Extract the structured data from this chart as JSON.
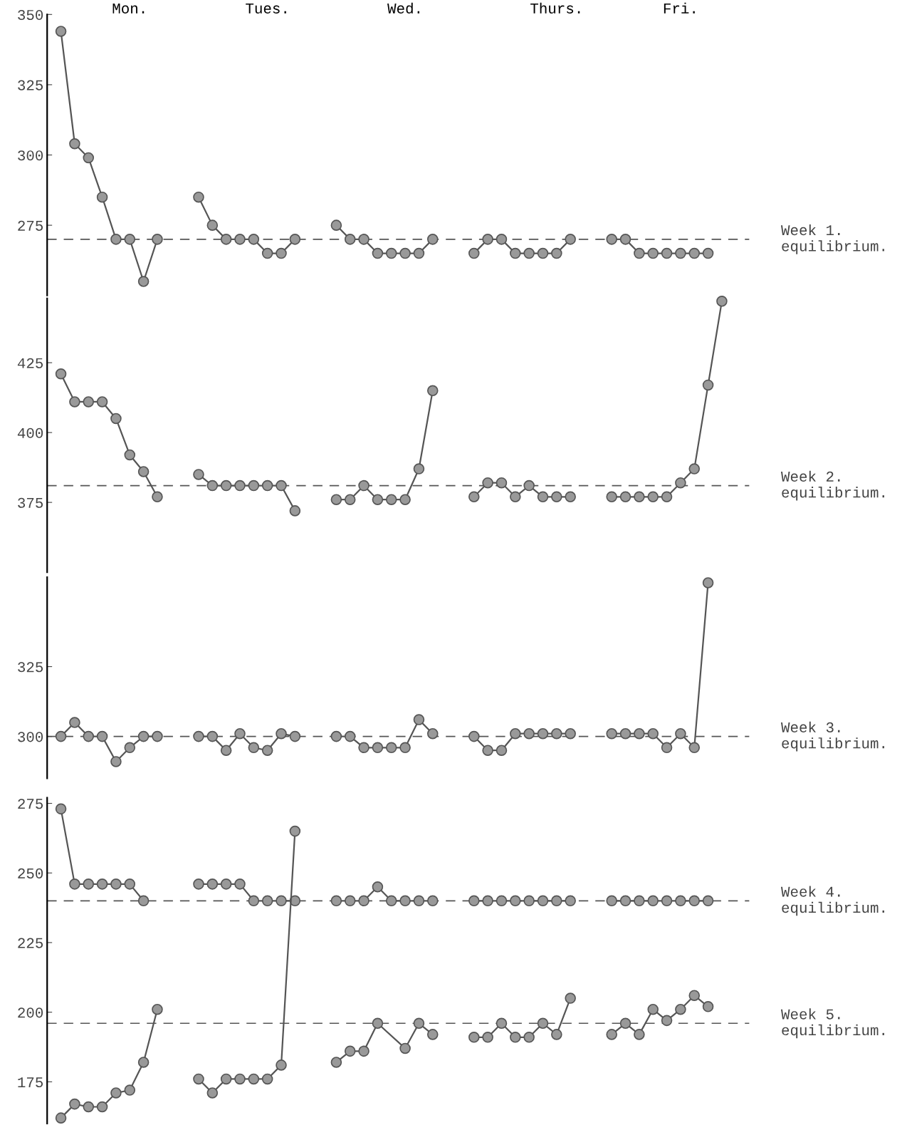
{
  "chart_data": [
    {
      "type": "line",
      "categories": [
        null,
        null,
        null,
        null,
        null,
        "Mon.",
        null,
        null,
        null,
        null,
        null,
        null,
        null,
        null,
        null,
        "Tues.",
        null,
        null,
        null,
        null,
        null,
        null,
        null,
        null,
        null,
        "Wed.",
        null,
        null,
        null,
        null,
        null,
        null,
        null,
        null,
        null,
        null,
        "Thurs.",
        null,
        null,
        null,
        null,
        null,
        null,
        null,
        null,
        "Fri.",
        null,
        null,
        null
      ],
      "ylim": [
        250,
        350
      ],
      "yticks": [
        275,
        300,
        325,
        350
      ],
      "marker": "circle",
      "line_style": "solid",
      "grid": false,
      "ref_lines": [
        {
          "axis": "y",
          "value": 270,
          "label": "Week 1.\nequilibrium.",
          "color": "#555555",
          "line_style": "dashed"
        }
      ],
      "series": [
        {
          "color": "#555555",
          "values": [
            344,
            304,
            299,
            285,
            270,
            270,
            255,
            270,
            null,
            null,
            285,
            275,
            270,
            270,
            270,
            265,
            265,
            270,
            null,
            null,
            275,
            270,
            270,
            265,
            265,
            265,
            265,
            270,
            null,
            null,
            265,
            270,
            270,
            265,
            265,
            265,
            265,
            270,
            null,
            null,
            270,
            270,
            265,
            265,
            265,
            265,
            265,
            265,
            null
          ]
        }
      ]
    },
    {
      "type": "line",
      "categories": [
        null,
        null,
        null,
        null,
        null,
        null,
        null,
        null,
        null,
        null,
        null,
        null,
        null,
        null,
        null,
        null,
        null,
        null,
        null,
        null,
        null,
        null,
        null,
        null,
        null,
        null,
        null,
        null,
        null,
        null,
        null,
        null,
        null,
        null,
        null,
        null,
        null,
        null,
        null,
        null,
        null,
        null,
        null,
        null,
        null,
        null,
        null,
        null,
        null
      ],
      "tick_labels": "y",
      "ylim": [
        350,
        448
      ],
      "yticks": [
        375,
        400,
        425
      ],
      "marker": "circle",
      "line_style": "solid",
      "grid": false,
      "ref_lines": [
        {
          "axis": "y",
          "value": 381,
          "label": "Week 2.\nequilibrium.",
          "color": "#555555",
          "line_style": "dashed"
        }
      ],
      "series": [
        {
          "color": "#555555",
          "values": [
            421,
            411,
            411,
            411,
            405,
            392,
            386,
            377,
            null,
            null,
            385,
            381,
            381,
            381,
            381,
            381,
            381,
            372,
            null,
            null,
            376,
            376,
            381,
            376,
            376,
            376,
            387,
            415,
            null,
            null,
            377,
            382,
            382,
            377,
            381,
            377,
            377,
            377,
            null,
            null,
            377,
            377,
            377,
            377,
            377,
            382,
            387,
            417,
            447
          ]
        }
      ]
    },
    {
      "type": "line",
      "categories": [
        null,
        null,
        null,
        null,
        null,
        null,
        null,
        null,
        null,
        null,
        null,
        null,
        null,
        null,
        null,
        null,
        null,
        null,
        null,
        null,
        null,
        null,
        null,
        null,
        null,
        null,
        null,
        null,
        null,
        null,
        null,
        null,
        null,
        null,
        null,
        null,
        null,
        null,
        null,
        null,
        null,
        null,
        null,
        null,
        null,
        null,
        null,
        null,
        null
      ],
      "tick_labels": "y",
      "ylim": [
        285,
        357
      ],
      "yticks": [
        300,
        325
      ],
      "marker": "circle",
      "line_style": "solid",
      "grid": false,
      "ref_lines": [
        {
          "axis": "y",
          "value": 300,
          "label": "Week 3.\nequilibrium.",
          "color": "#555555",
          "line_style": "dashed"
        }
      ],
      "series": [
        {
          "color": "#555555",
          "values": [
            300,
            305,
            300,
            300,
            291,
            296,
            300,
            300,
            null,
            null,
            300,
            300,
            295,
            301,
            296,
            295,
            301,
            300,
            null,
            null,
            300,
            300,
            296,
            296,
            296,
            296,
            306,
            301,
            null,
            null,
            300,
            295,
            295,
            301,
            301,
            301,
            301,
            301,
            null,
            null,
            301,
            301,
            301,
            301,
            296,
            301,
            296,
            355,
            null
          ]
        }
      ]
    },
    {
      "type": "line",
      "categories": [
        null,
        null,
        null,
        null,
        null,
        null,
        null,
        null,
        null,
        null,
        null,
        null,
        null,
        null,
        null,
        null,
        null,
        null,
        null,
        null,
        null,
        null,
        null,
        null,
        null,
        null,
        null,
        null,
        null,
        null,
        null,
        null,
        null,
        null,
        null,
        null,
        null,
        null,
        null,
        null,
        null,
        null,
        null,
        null,
        null,
        null,
        null,
        null,
        null
      ],
      "tick_labels": "y",
      "ylim": [
        160,
        277
      ],
      "yticks": [
        175,
        200,
        225,
        250,
        275
      ],
      "marker": "circle",
      "line_style": "solid",
      "grid": false,
      "ref_lines": [
        {
          "axis": "y",
          "value": 240,
          "label": "Week 4.\nequilibrium.",
          "color": "#555555",
          "line_style": "dashed"
        },
        {
          "axis": "y",
          "value": 196,
          "label": "Week 5.\nequilibrium.",
          "color": "#555555",
          "line_style": "dashed"
        }
      ],
      "series": [
        {
          "color": "#555555",
          "values": [
            273,
            246,
            246,
            246,
            246,
            246,
            240,
            null,
            null,
            null,
            246,
            246,
            246,
            246,
            240,
            240,
            240,
            240,
            null,
            null,
            240,
            240,
            240,
            245,
            240,
            240,
            240,
            240,
            null,
            null,
            240,
            240,
            240,
            240,
            240,
            240,
            240,
            240,
            null,
            null,
            240,
            240,
            240,
            240,
            240,
            240,
            240,
            240,
            null
          ]
        },
        {
          "color": "#555555",
          "values": [
            162,
            167,
            166,
            166,
            171,
            172,
            182,
            201,
            null,
            null,
            176,
            171,
            176,
            176,
            176,
            176,
            181,
            265,
            null,
            null,
            182,
            186,
            186,
            196,
            null,
            187,
            196,
            192,
            null,
            null,
            191,
            191,
            196,
            191,
            191,
            196,
            192,
            205,
            null,
            null,
            192,
            196,
            192,
            201,
            197,
            201,
            206,
            202,
            null
          ]
        }
      ]
    }
  ]
}
